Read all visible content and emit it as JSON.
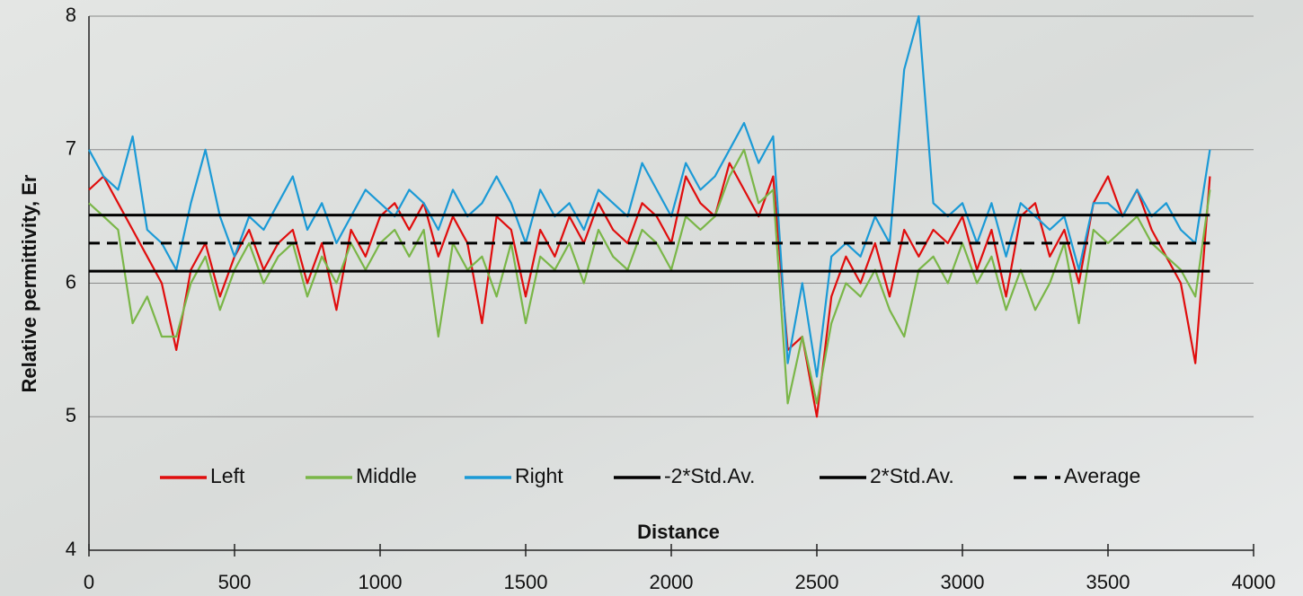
{
  "chart_data": {
    "type": "line",
    "x_label": "Distance",
    "y_label": "Relative permittivity, Er",
    "x": [
      0,
      50,
      100,
      150,
      200,
      250,
      300,
      350,
      400,
      450,
      500,
      550,
      600,
      650,
      700,
      750,
      800,
      850,
      900,
      950,
      1000,
      1050,
      1100,
      1150,
      1200,
      1250,
      1300,
      1350,
      1400,
      1450,
      1500,
      1550,
      1600,
      1650,
      1700,
      1750,
      1800,
      1850,
      1900,
      1950,
      2000,
      2050,
      2100,
      2150,
      2200,
      2250,
      2300,
      2350,
      2400,
      2450,
      2500,
      2550,
      2600,
      2650,
      2700,
      2750,
      2800,
      2850,
      2900,
      2950,
      3000,
      3050,
      3100,
      3150,
      3200,
      3250,
      3300,
      3350,
      3400,
      3450,
      3500,
      3550,
      3600,
      3650,
      3700,
      3750,
      3800,
      3850
    ],
    "series": [
      {
        "name": "Left",
        "color": "#e00d0d",
        "values": [
          6.7,
          6.8,
          6.6,
          6.4,
          6.2,
          6.0,
          5.5,
          6.1,
          6.3,
          5.9,
          6.2,
          6.4,
          6.1,
          6.3,
          6.4,
          6.0,
          6.3,
          5.8,
          6.4,
          6.2,
          6.5,
          6.6,
          6.4,
          6.6,
          6.2,
          6.5,
          6.3,
          5.7,
          6.5,
          6.4,
          5.9,
          6.4,
          6.2,
          6.5,
          6.3,
          6.6,
          6.4,
          6.3,
          6.6,
          6.5,
          6.3,
          6.8,
          6.6,
          6.5,
          6.9,
          6.7,
          6.5,
          6.8,
          5.5,
          5.6,
          5.0,
          5.9,
          6.2,
          6.0,
          6.3,
          5.9,
          6.4,
          6.2,
          6.4,
          6.3,
          6.5,
          6.1,
          6.4,
          5.9,
          6.5,
          6.6,
          6.2,
          6.4,
          6.0,
          6.6,
          6.8,
          6.5,
          6.7,
          6.4,
          6.2,
          6.0,
          5.4,
          6.8
        ]
      },
      {
        "name": "Middle",
        "color": "#7ab648",
        "values": [
          6.6,
          6.5,
          6.4,
          5.7,
          5.9,
          5.6,
          5.6,
          6.0,
          6.2,
          5.8,
          6.1,
          6.3,
          6.0,
          6.2,
          6.3,
          5.9,
          6.2,
          6.0,
          6.3,
          6.1,
          6.3,
          6.4,
          6.2,
          6.4,
          5.6,
          6.3,
          6.1,
          6.2,
          5.9,
          6.3,
          5.7,
          6.2,
          6.1,
          6.3,
          6.0,
          6.4,
          6.2,
          6.1,
          6.4,
          6.3,
          6.1,
          6.5,
          6.4,
          6.5,
          6.8,
          7.0,
          6.6,
          6.7,
          5.1,
          5.6,
          5.1,
          5.7,
          6.0,
          5.9,
          6.1,
          5.8,
          5.6,
          6.1,
          6.2,
          6.0,
          6.3,
          6.0,
          6.2,
          5.8,
          6.1,
          5.8,
          6.0,
          6.3,
          5.7,
          6.4,
          6.3,
          6.4,
          6.5,
          6.3,
          6.2,
          6.1,
          5.9,
          6.7
        ]
      },
      {
        "name": "Right",
        "color": "#1b9ad6",
        "values": [
          7.0,
          6.8,
          6.7,
          7.1,
          6.4,
          6.3,
          6.1,
          6.6,
          7.0,
          6.5,
          6.2,
          6.5,
          6.4,
          6.6,
          6.8,
          6.4,
          6.6,
          6.3,
          6.5,
          6.7,
          6.6,
          6.5,
          6.7,
          6.6,
          6.4,
          6.7,
          6.5,
          6.6,
          6.8,
          6.6,
          6.3,
          6.7,
          6.5,
          6.6,
          6.4,
          6.7,
          6.6,
          6.5,
          6.9,
          6.7,
          6.5,
          6.9,
          6.7,
          6.8,
          7.0,
          7.2,
          6.9,
          7.1,
          5.4,
          6.0,
          5.3,
          6.2,
          6.3,
          6.2,
          6.5,
          6.3,
          7.6,
          8.0,
          6.6,
          6.5,
          6.6,
          6.3,
          6.6,
          6.2,
          6.6,
          6.5,
          6.4,
          6.5,
          6.1,
          6.6,
          6.6,
          6.5,
          6.7,
          6.5,
          6.6,
          6.4,
          6.3,
          7.0
        ]
      },
      {
        "name": "-2*Std.Av.",
        "color": "#000000",
        "x": [
          0,
          3850
        ],
        "values": [
          6.09,
          6.09
        ]
      },
      {
        "name": "2*Std.Av.",
        "color": "#000000",
        "x": [
          0,
          3850
        ],
        "values": [
          6.51,
          6.51
        ]
      },
      {
        "name": "Average",
        "color": "#000000",
        "dashed": true,
        "x": [
          0,
          3850
        ],
        "values": [
          6.3,
          6.3
        ]
      }
    ],
    "xlim": [
      0,
      4000
    ],
    "xticks": [
      0,
      500,
      1000,
      1500,
      2000,
      2500,
      3000,
      3500,
      4000
    ],
    "ylim": [
      4,
      8
    ],
    "yticks": [
      4,
      5,
      6,
      7,
      8
    ],
    "grid": true,
    "legend": "bottom"
  }
}
